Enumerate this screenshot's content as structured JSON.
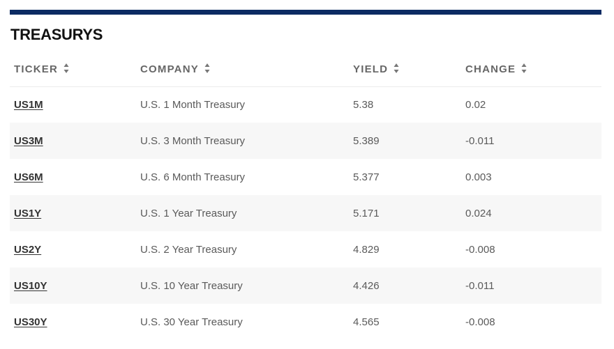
{
  "widget": {
    "title": "TREASURYS",
    "accent_color": "#0c2b63"
  },
  "columns": {
    "ticker": "TICKER",
    "company": "COMPANY",
    "yield": "YIELD",
    "change": "CHANGE",
    "sort_icon": "sort-up-down-icon"
  },
  "rows": [
    {
      "ticker": "US1M",
      "company": "U.S. 1 Month Treasury",
      "yield": "5.38",
      "change": "0.02"
    },
    {
      "ticker": "US3M",
      "company": "U.S. 3 Month Treasury",
      "yield": "5.389",
      "change": "-0.011"
    },
    {
      "ticker": "US6M",
      "company": "U.S. 6 Month Treasury",
      "yield": "5.377",
      "change": "0.003"
    },
    {
      "ticker": "US1Y",
      "company": "U.S. 1 Year Treasury",
      "yield": "5.171",
      "change": "0.024"
    },
    {
      "ticker": "US2Y",
      "company": "U.S. 2 Year Treasury",
      "yield": "4.829",
      "change": "-0.008"
    },
    {
      "ticker": "US10Y",
      "company": "U.S. 10 Year Treasury",
      "yield": "4.426",
      "change": "-0.011"
    },
    {
      "ticker": "US30Y",
      "company": "U.S. 30 Year Treasury",
      "yield": "4.565",
      "change": "-0.008"
    }
  ]
}
